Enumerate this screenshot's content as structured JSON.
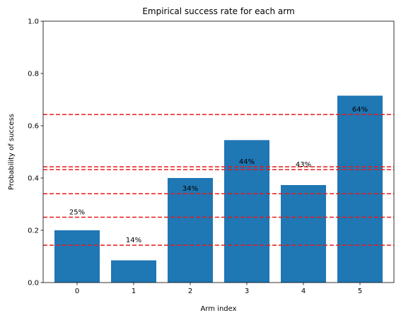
{
  "chart_data": {
    "type": "bar",
    "title": "Empirical success rate for each arm",
    "xlabel": "Arm index",
    "ylabel": "Probability of success",
    "categories": [
      "0",
      "1",
      "2",
      "3",
      "4",
      "5"
    ],
    "values": [
      0.2,
      0.085,
      0.4,
      0.545,
      0.373,
      0.715
    ],
    "bar_labels": [
      "25%",
      "14%",
      "34%",
      "44%",
      "43%",
      "64%"
    ],
    "reference_lines": [
      0.25,
      0.143,
      0.34,
      0.443,
      0.432,
      0.643
    ],
    "ylim": [
      0,
      1.0
    ],
    "yticks": [
      "0.0",
      "0.2",
      "0.4",
      "0.6",
      "0.8",
      "1.0"
    ],
    "bar_color": "#1f77b4",
    "reference_line_color": "#e41a1c",
    "grid": false
  }
}
